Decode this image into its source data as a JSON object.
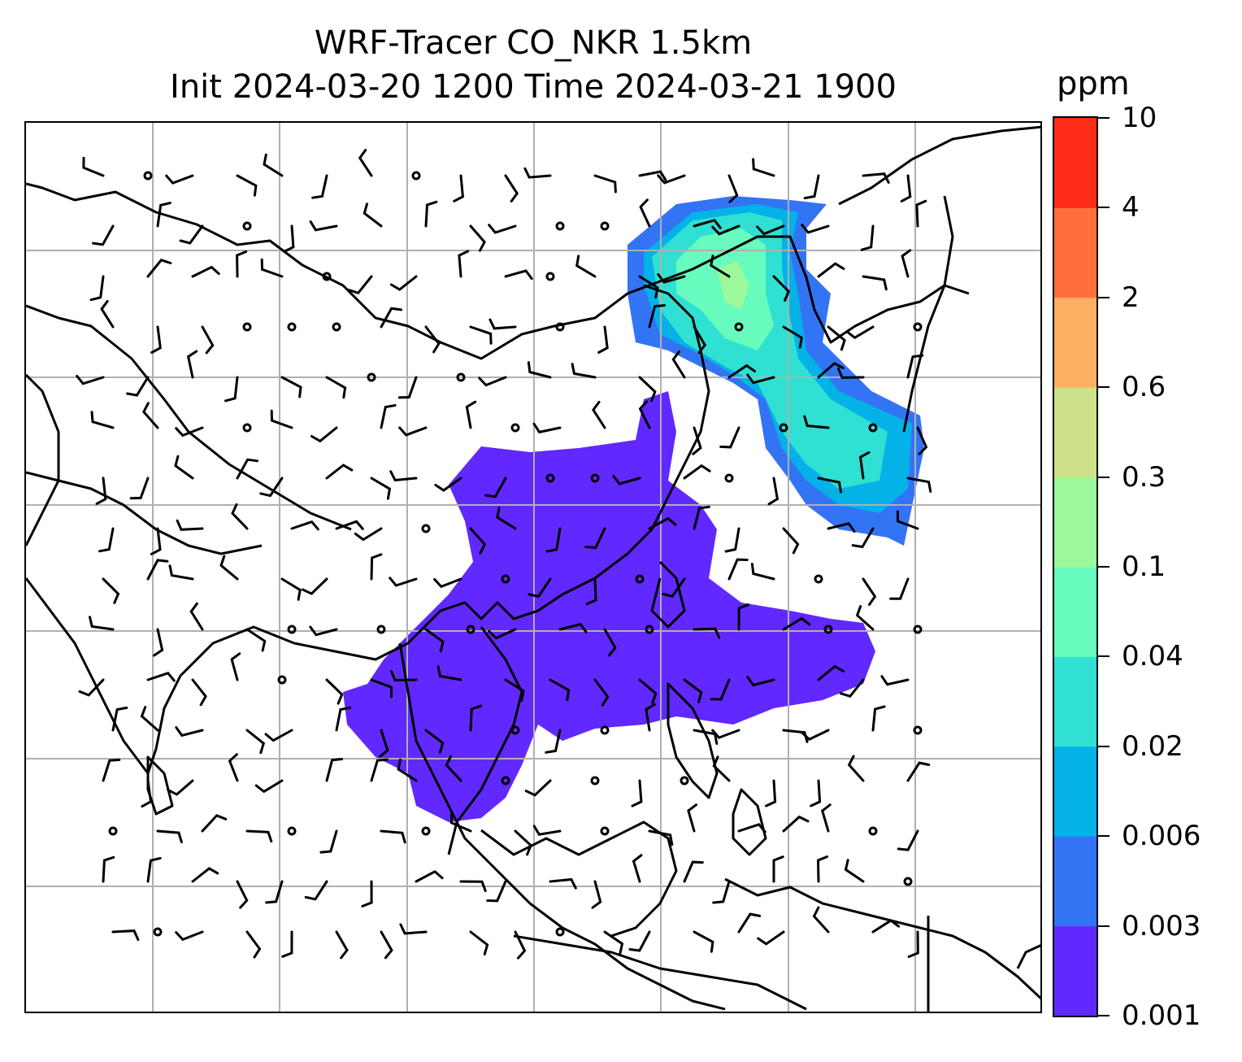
{
  "title": {
    "line1": "WRF-Tracer CO_NKR 1.5km",
    "line2": "Init 2024-03-20 1200 Time 2024-03-21 1900"
  },
  "colorbar": {
    "unit": "ppm",
    "levels": [
      "0.001",
      "0.003",
      "0.006",
      "0.02",
      "0.04",
      "0.1",
      "0.3",
      "0.6",
      "2",
      "4",
      "10"
    ],
    "colors": [
      "#6128ff",
      "#3374f5",
      "#04b2e8",
      "#30e0d2",
      "#67fbbe",
      "#9cf99b",
      "#cde188",
      "#fdb064",
      "#ff703d",
      "#ff2c17"
    ]
  },
  "map": {
    "gridlines": true,
    "features": [
      "coastlines",
      "country-borders",
      "wind-barbs",
      "tracer-concentration-shading"
    ]
  }
}
